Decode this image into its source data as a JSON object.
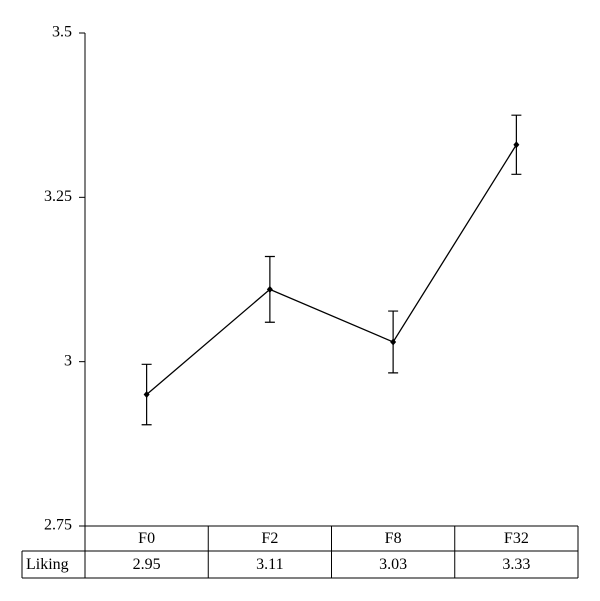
{
  "chart_data": {
    "type": "line",
    "categories": [
      "F0",
      "F2",
      "F8",
      "F32"
    ],
    "series": [
      {
        "name": "Liking",
        "color": "#000000",
        "values": [
          2.95,
          3.11,
          3.03,
          3.33
        ],
        "errors": [
          0.046,
          0.05,
          0.047,
          0.045
        ]
      }
    ],
    "ylim": [
      2.75,
      3.5
    ],
    "yticks": [
      2.75,
      3,
      3.25,
      3.5
    ],
    "grid": false
  }
}
